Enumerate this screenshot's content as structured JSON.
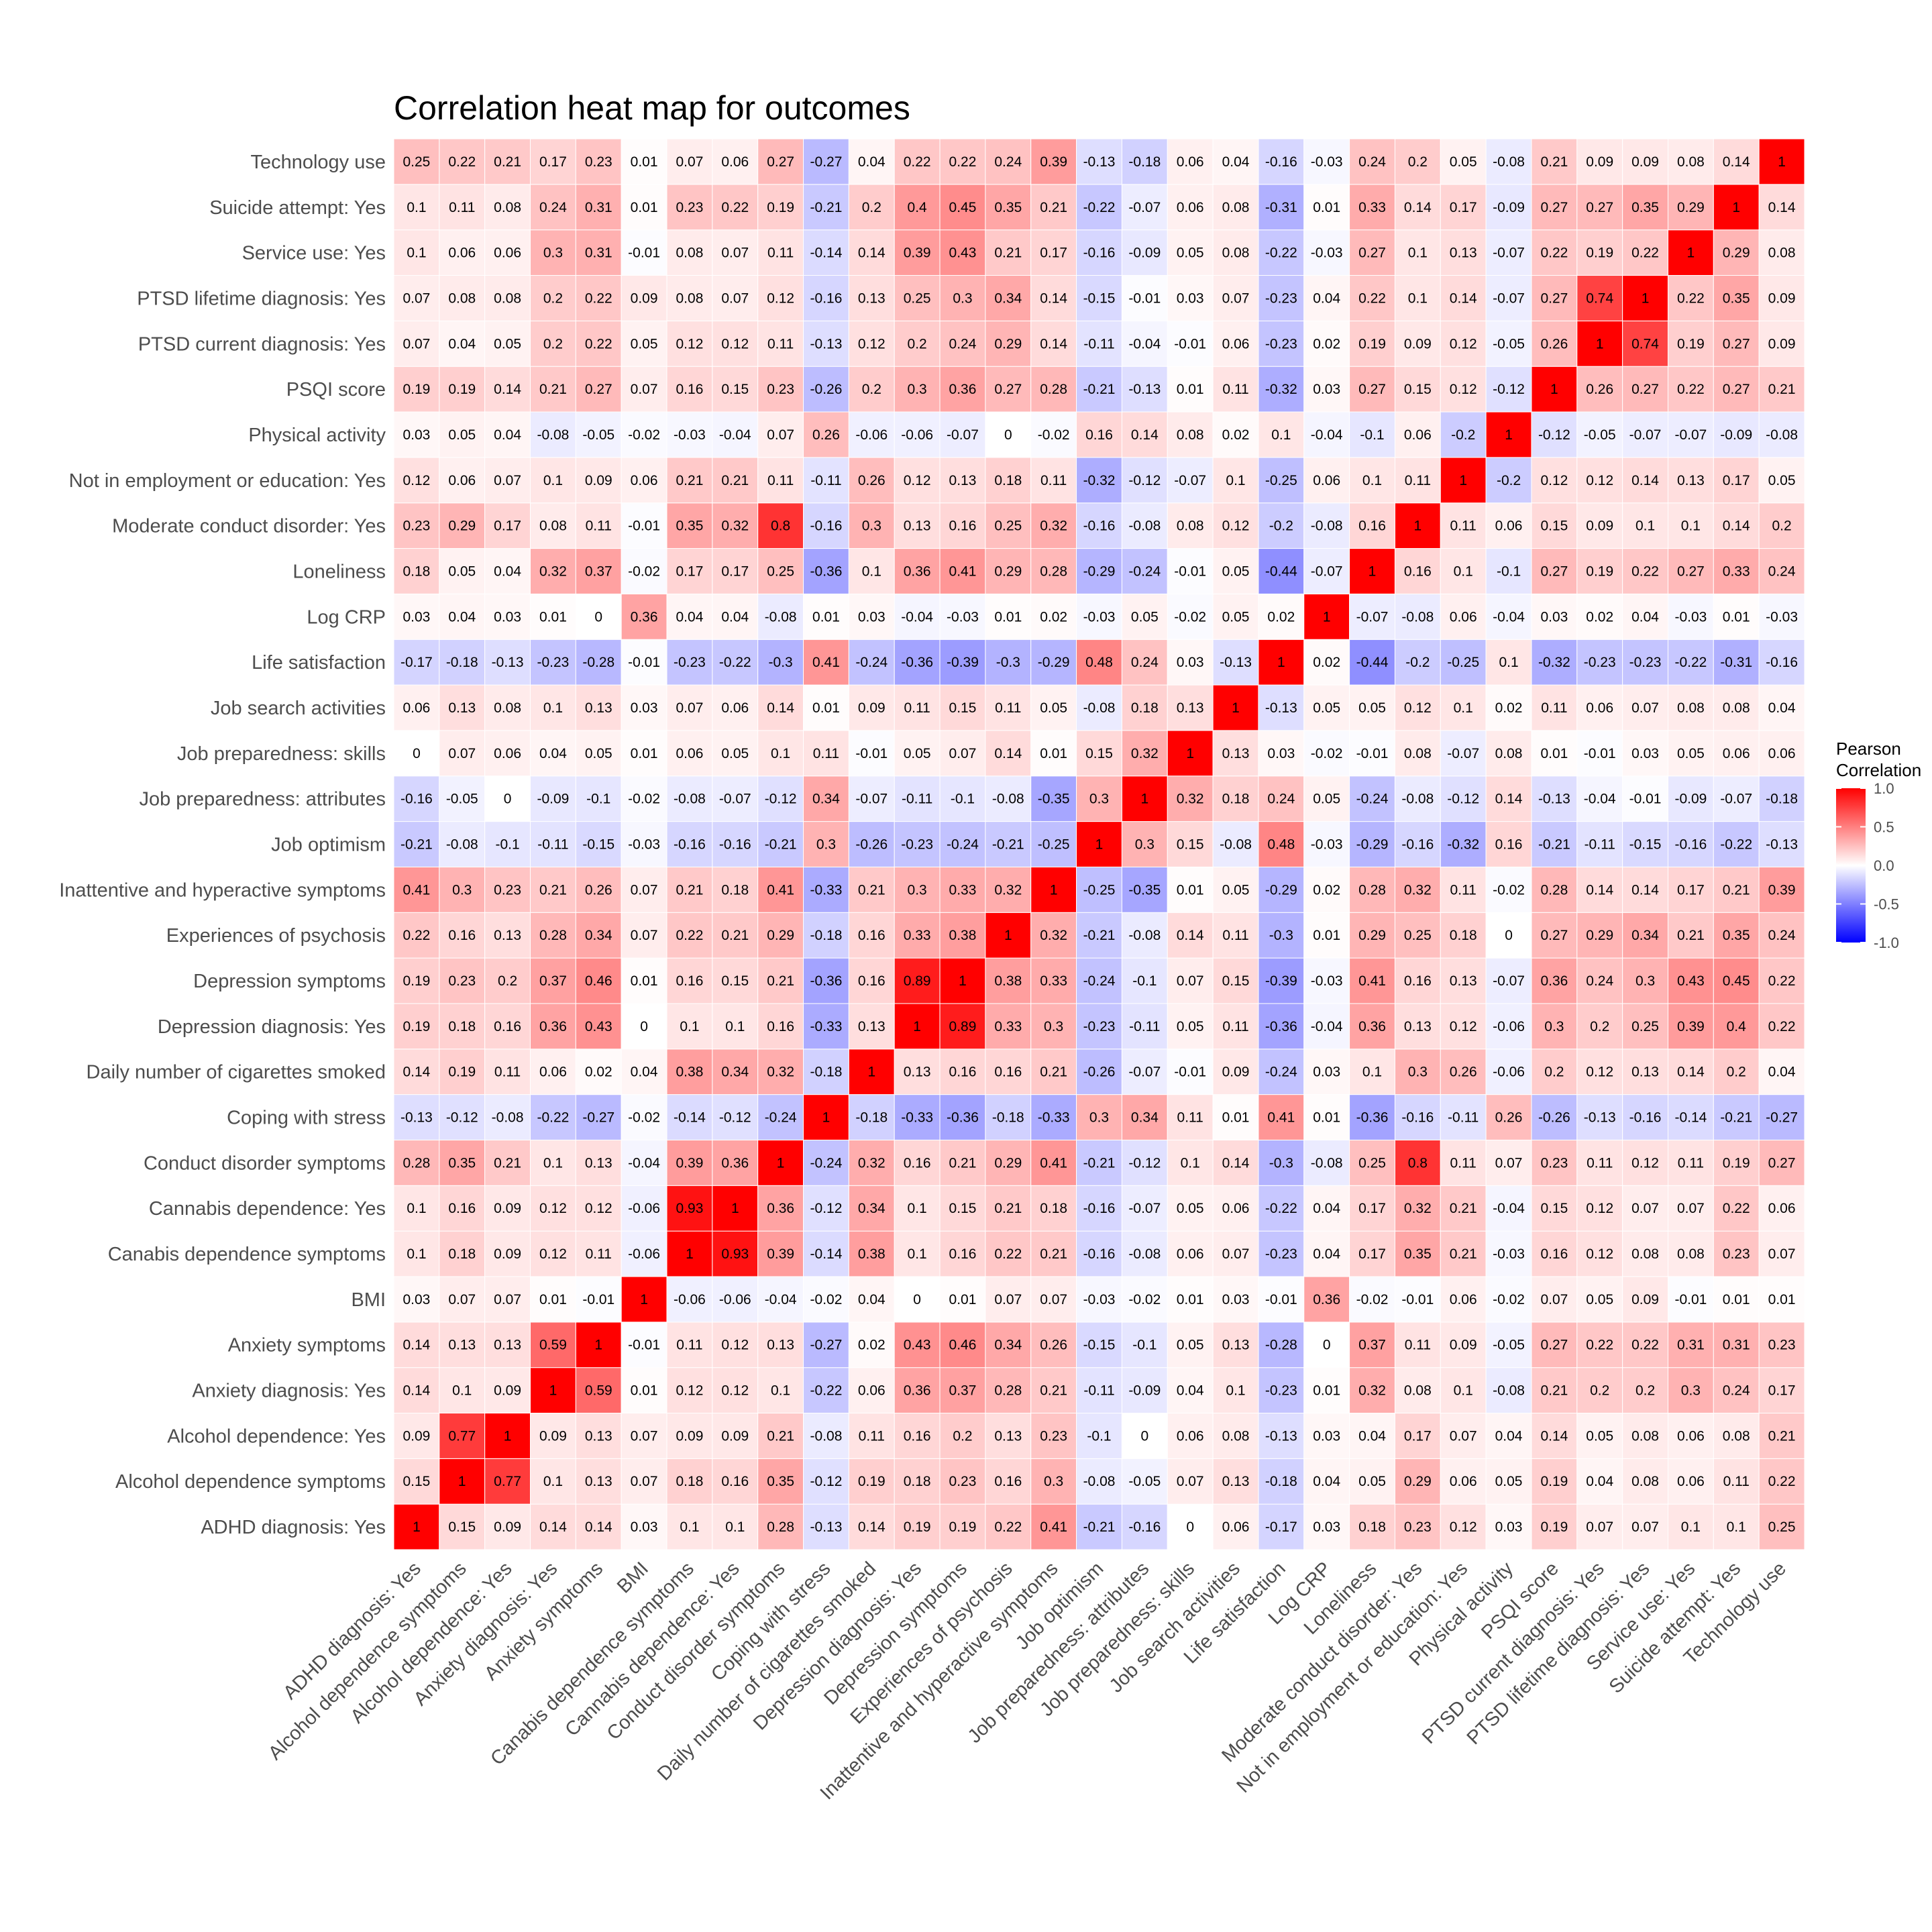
{
  "chart_data": {
    "type": "heatmap",
    "title": "Correlation heat map for outcomes",
    "variables": [
      "ADHD diagnosis: Yes",
      "Alcohol dependence symptoms",
      "Alcohol dependence: Yes",
      "Anxiety diagnosis: Yes",
      "Anxiety symptoms",
      "BMI",
      "Canabis dependence symptoms",
      "Cannabis dependence: Yes",
      "Conduct disorder symptoms",
      "Coping with stress",
      "Daily number of cigarettes smoked",
      "Depression diagnosis: Yes",
      "Depression symptoms",
      "Experiences of psychosis",
      "Inattentive and hyperactive symptoms",
      "Job optimism",
      "Job preparedness: attributes",
      "Job preparedness: skills",
      "Job search activities",
      "Life satisfaction",
      "Log CRP",
      "Loneliness",
      "Moderate conduct disorder: Yes",
      "Not in employment or education: Yes",
      "Physical activity",
      "PSQI score",
      "PTSD current diagnosis: Yes",
      "PTSD lifetime diagnosis: Yes",
      "Service use: Yes",
      "Suicide attempt: Yes",
      "Technology use"
    ],
    "matrix": [
      [
        1,
        0.15,
        0.09,
        0.14,
        0.14,
        0.03,
        0.1,
        0.1,
        0.28,
        -0.13,
        0.14,
        0.19,
        0.19,
        0.22,
        0.41,
        -0.21,
        -0.16,
        0,
        0.06,
        -0.17,
        0.03,
        0.18,
        0.23,
        0.12,
        0.03,
        0.19,
        0.07,
        0.07,
        0.1,
        0.1,
        0.25
      ],
      [
        0.15,
        1,
        0.77,
        0.1,
        0.13,
        0.07,
        0.18,
        0.16,
        0.35,
        -0.12,
        0.19,
        0.18,
        0.23,
        0.16,
        0.3,
        -0.08,
        -0.05,
        0.07,
        0.13,
        -0.18,
        0.04,
        0.05,
        0.29,
        0.06,
        0.05,
        0.19,
        0.04,
        0.08,
        0.06,
        0.11,
        0.22
      ],
      [
        0.09,
        0.77,
        1,
        0.09,
        0.13,
        0.07,
        0.09,
        0.09,
        0.21,
        -0.08,
        0.11,
        0.16,
        0.2,
        0.13,
        0.23,
        -0.1,
        0,
        0.06,
        0.08,
        -0.13,
        0.03,
        0.04,
        0.17,
        0.07,
        0.04,
        0.14,
        0.05,
        0.08,
        0.06,
        0.08,
        0.21
      ],
      [
        0.14,
        0.1,
        0.09,
        1,
        0.59,
        0.01,
        0.12,
        0.12,
        0.1,
        -0.22,
        0.06,
        0.36,
        0.37,
        0.28,
        0.21,
        -0.11,
        -0.09,
        0.04,
        0.1,
        -0.23,
        0.01,
        0.32,
        0.08,
        0.1,
        -0.08,
        0.21,
        0.2,
        0.2,
        0.3,
        0.24,
        0.17
      ],
      [
        0.14,
        0.13,
        0.13,
        0.59,
        1,
        -0.01,
        0.11,
        0.12,
        0.13,
        -0.27,
        0.02,
        0.43,
        0.46,
        0.34,
        0.26,
        -0.15,
        -0.1,
        0.05,
        0.13,
        -0.28,
        0,
        0.37,
        0.11,
        0.09,
        -0.05,
        0.27,
        0.22,
        0.22,
        0.31,
        0.31,
        0.23
      ],
      [
        0.03,
        0.07,
        0.07,
        0.01,
        -0.01,
        1,
        -0.06,
        -0.06,
        -0.04,
        -0.02,
        0.04,
        0,
        0.01,
        0.07,
        0.07,
        -0.03,
        -0.02,
        0.01,
        0.03,
        -0.01,
        0.36,
        -0.02,
        -0.01,
        0.06,
        -0.02,
        0.07,
        0.05,
        0.09,
        -0.01,
        0.01,
        0.01
      ],
      [
        0.1,
        0.18,
        0.09,
        0.12,
        0.11,
        -0.06,
        1,
        0.93,
        0.39,
        -0.14,
        0.38,
        0.1,
        0.16,
        0.22,
        0.21,
        -0.16,
        -0.08,
        0.06,
        0.07,
        -0.23,
        0.04,
        0.17,
        0.35,
        0.21,
        -0.03,
        0.16,
        0.12,
        0.08,
        0.08,
        0.23,
        0.07
      ],
      [
        0.1,
        0.16,
        0.09,
        0.12,
        0.12,
        -0.06,
        0.93,
        1,
        0.36,
        -0.12,
        0.34,
        0.1,
        0.15,
        0.21,
        0.18,
        -0.16,
        -0.07,
        0.05,
        0.06,
        -0.22,
        0.04,
        0.17,
        0.32,
        0.21,
        -0.04,
        0.15,
        0.12,
        0.07,
        0.07,
        0.22,
        0.06
      ],
      [
        0.28,
        0.35,
        0.21,
        0.1,
        0.13,
        -0.04,
        0.39,
        0.36,
        1,
        -0.24,
        0.32,
        0.16,
        0.21,
        0.29,
        0.41,
        -0.21,
        -0.12,
        0.1,
        0.14,
        -0.3,
        -0.08,
        0.25,
        0.8,
        0.11,
        0.07,
        0.23,
        0.11,
        0.12,
        0.11,
        0.19,
        0.27
      ],
      [
        -0.13,
        -0.12,
        -0.08,
        -0.22,
        -0.27,
        -0.02,
        -0.14,
        -0.12,
        -0.24,
        1,
        -0.18,
        -0.33,
        -0.36,
        -0.18,
        -0.33,
        0.3,
        0.34,
        0.11,
        0.01,
        0.41,
        0.01,
        -0.36,
        -0.16,
        -0.11,
        0.26,
        -0.26,
        -0.13,
        -0.16,
        -0.14,
        -0.21,
        -0.27
      ],
      [
        0.14,
        0.19,
        0.11,
        0.06,
        0.02,
        0.04,
        0.38,
        0.34,
        0.32,
        -0.18,
        1,
        0.13,
        0.16,
        0.16,
        0.21,
        -0.26,
        -0.07,
        -0.01,
        0.09,
        -0.24,
        0.03,
        0.1,
        0.3,
        0.26,
        -0.06,
        0.2,
        0.12,
        0.13,
        0.14,
        0.2,
        0.04
      ],
      [
        0.19,
        0.18,
        0.16,
        0.36,
        0.43,
        0,
        0.1,
        0.1,
        0.16,
        -0.33,
        0.13,
        1,
        0.89,
        0.33,
        0.3,
        -0.23,
        -0.11,
        0.05,
        0.11,
        -0.36,
        -0.04,
        0.36,
        0.13,
        0.12,
        -0.06,
        0.3,
        0.2,
        0.25,
        0.39,
        0.4,
        0.22
      ],
      [
        0.19,
        0.23,
        0.2,
        0.37,
        0.46,
        0.01,
        0.16,
        0.15,
        0.21,
        -0.36,
        0.16,
        0.89,
        1,
        0.38,
        0.33,
        -0.24,
        -0.1,
        0.07,
        0.15,
        -0.39,
        -0.03,
        0.41,
        0.16,
        0.13,
        -0.07,
        0.36,
        0.24,
        0.3,
        0.43,
        0.45,
        0.22
      ],
      [
        0.22,
        0.16,
        0.13,
        0.28,
        0.34,
        0.07,
        0.22,
        0.21,
        0.29,
        -0.18,
        0.16,
        0.33,
        0.38,
        1,
        0.32,
        -0.21,
        -0.08,
        0.14,
        0.11,
        -0.3,
        0.01,
        0.29,
        0.25,
        0.18,
        0,
        0.27,
        0.29,
        0.34,
        0.21,
        0.35,
        0.24
      ],
      [
        0.41,
        0.3,
        0.23,
        0.21,
        0.26,
        0.07,
        0.21,
        0.18,
        0.41,
        -0.33,
        0.21,
        0.3,
        0.33,
        0.32,
        1,
        -0.25,
        -0.35,
        0.01,
        0.05,
        -0.29,
        0.02,
        0.28,
        0.32,
        0.11,
        -0.02,
        0.28,
        0.14,
        0.14,
        0.17,
        0.21,
        0.39
      ],
      [
        -0.21,
        -0.08,
        -0.1,
        -0.11,
        -0.15,
        -0.03,
        -0.16,
        -0.16,
        -0.21,
        0.3,
        -0.26,
        -0.23,
        -0.24,
        -0.21,
        -0.25,
        1,
        0.3,
        0.15,
        -0.08,
        0.48,
        -0.03,
        -0.29,
        -0.16,
        -0.32,
        0.16,
        -0.21,
        -0.11,
        -0.15,
        -0.16,
        -0.22,
        -0.13
      ],
      [
        -0.16,
        -0.05,
        0,
        -0.09,
        -0.1,
        -0.02,
        -0.08,
        -0.07,
        -0.12,
        0.34,
        -0.07,
        -0.11,
        -0.1,
        -0.08,
        -0.35,
        0.3,
        1,
        0.32,
        0.18,
        0.24,
        0.05,
        -0.24,
        -0.08,
        -0.12,
        0.14,
        -0.13,
        -0.04,
        -0.01,
        -0.09,
        -0.07,
        -0.18
      ],
      [
        0,
        0.07,
        0.06,
        0.04,
        0.05,
        0.01,
        0.06,
        0.05,
        0.1,
        0.11,
        -0.01,
        0.05,
        0.07,
        0.14,
        0.01,
        0.15,
        0.32,
        1,
        0.13,
        0.03,
        -0.02,
        -0.01,
        0.08,
        -0.07,
        0.08,
        0.01,
        -0.01,
        0.03,
        0.05,
        0.06,
        0.06
      ],
      [
        0.06,
        0.13,
        0.08,
        0.1,
        0.13,
        0.03,
        0.07,
        0.06,
        0.14,
        0.01,
        0.09,
        0.11,
        0.15,
        0.11,
        0.05,
        -0.08,
        0.18,
        0.13,
        1,
        -0.13,
        0.05,
        0.05,
        0.12,
        0.1,
        0.02,
        0.11,
        0.06,
        0.07,
        0.08,
        0.08,
        0.04
      ],
      [
        -0.17,
        -0.18,
        -0.13,
        -0.23,
        -0.28,
        -0.01,
        -0.23,
        -0.22,
        -0.3,
        0.41,
        -0.24,
        -0.36,
        -0.39,
        -0.3,
        -0.29,
        0.48,
        0.24,
        0.03,
        -0.13,
        1,
        0.02,
        -0.44,
        -0.2,
        -0.25,
        0.1,
        -0.32,
        -0.23,
        -0.23,
        -0.22,
        -0.31,
        -0.16
      ],
      [
        0.03,
        0.04,
        0.03,
        0.01,
        0,
        0.36,
        0.04,
        0.04,
        -0.08,
        0.01,
        0.03,
        -0.04,
        -0.03,
        0.01,
        0.02,
        -0.03,
        0.05,
        -0.02,
        0.05,
        0.02,
        1,
        -0.07,
        -0.08,
        0.06,
        -0.04,
        0.03,
        0.02,
        0.04,
        -0.03,
        0.01,
        -0.03
      ],
      [
        0.18,
        0.05,
        0.04,
        0.32,
        0.37,
        -0.02,
        0.17,
        0.17,
        0.25,
        -0.36,
        0.1,
        0.36,
        0.41,
        0.29,
        0.28,
        -0.29,
        -0.24,
        -0.01,
        0.05,
        -0.44,
        -0.07,
        1,
        0.16,
        0.1,
        -0.1,
        0.27,
        0.19,
        0.22,
        0.27,
        0.33,
        0.24
      ],
      [
        0.23,
        0.29,
        0.17,
        0.08,
        0.11,
        -0.01,
        0.35,
        0.32,
        0.8,
        -0.16,
        0.3,
        0.13,
        0.16,
        0.25,
        0.32,
        -0.16,
        -0.08,
        0.08,
        0.12,
        -0.2,
        -0.08,
        0.16,
        1,
        0.11,
        0.06,
        0.15,
        0.09,
        0.1,
        0.1,
        0.14,
        0.2
      ],
      [
        0.12,
        0.06,
        0.07,
        0.1,
        0.09,
        0.06,
        0.21,
        0.21,
        0.11,
        -0.11,
        0.26,
        0.12,
        0.13,
        0.18,
        0.11,
        -0.32,
        -0.12,
        -0.07,
        0.1,
        -0.25,
        0.06,
        0.1,
        0.11,
        1,
        -0.2,
        0.12,
        0.12,
        0.14,
        0.13,
        0.17,
        0.05
      ],
      [
        0.03,
        0.05,
        0.04,
        -0.08,
        -0.05,
        -0.02,
        -0.03,
        -0.04,
        0.07,
        0.26,
        -0.06,
        -0.06,
        -0.07,
        0,
        -0.02,
        0.16,
        0.14,
        0.08,
        0.02,
        0.1,
        -0.04,
        -0.1,
        0.06,
        -0.2,
        1,
        -0.12,
        -0.05,
        -0.07,
        -0.07,
        -0.09,
        -0.08
      ],
      [
        0.19,
        0.19,
        0.14,
        0.21,
        0.27,
        0.07,
        0.16,
        0.15,
        0.23,
        -0.26,
        0.2,
        0.3,
        0.36,
        0.27,
        0.28,
        -0.21,
        -0.13,
        0.01,
        0.11,
        -0.32,
        0.03,
        0.27,
        0.15,
        0.12,
        -0.12,
        1,
        0.26,
        0.27,
        0.22,
        0.27,
        0.21
      ],
      [
        0.07,
        0.04,
        0.05,
        0.2,
        0.22,
        0.05,
        0.12,
        0.12,
        0.11,
        -0.13,
        0.12,
        0.2,
        0.24,
        0.29,
        0.14,
        -0.11,
        -0.04,
        -0.01,
        0.06,
        -0.23,
        0.02,
        0.19,
        0.09,
        0.12,
        -0.05,
        0.26,
        1,
        0.74,
        0.19,
        0.27,
        0.09
      ],
      [
        0.07,
        0.08,
        0.08,
        0.2,
        0.22,
        0.09,
        0.08,
        0.07,
        0.12,
        -0.16,
        0.13,
        0.25,
        0.3,
        0.34,
        0.14,
        -0.15,
        -0.01,
        0.03,
        0.07,
        -0.23,
        0.04,
        0.22,
        0.1,
        0.14,
        -0.07,
        0.27,
        0.74,
        1,
        0.22,
        0.35,
        0.09
      ],
      [
        0.1,
        0.06,
        0.06,
        0.3,
        0.31,
        -0.01,
        0.08,
        0.07,
        0.11,
        -0.14,
        0.14,
        0.39,
        0.43,
        0.21,
        0.17,
        -0.16,
        -0.09,
        0.05,
        0.08,
        -0.22,
        -0.03,
        0.27,
        0.1,
        0.13,
        -0.07,
        0.22,
        0.19,
        0.22,
        1,
        0.29,
        0.08
      ],
      [
        0.1,
        0.11,
        0.08,
        0.24,
        0.31,
        0.01,
        0.23,
        0.22,
        0.19,
        -0.21,
        0.2,
        0.4,
        0.45,
        0.35,
        0.21,
        -0.22,
        -0.07,
        0.06,
        0.08,
        -0.31,
        0.01,
        0.33,
        0.14,
        0.17,
        -0.09,
        0.27,
        0.27,
        0.35,
        0.29,
        1,
        0.14
      ],
      [
        0.25,
        0.22,
        0.21,
        0.17,
        0.23,
        0.01,
        0.07,
        0.06,
        0.27,
        -0.27,
        0.04,
        0.22,
        0.22,
        0.24,
        0.39,
        -0.13,
        -0.18,
        0.06,
        0.04,
        -0.16,
        -0.03,
        0.24,
        0.2,
        0.05,
        -0.08,
        0.21,
        0.09,
        0.09,
        0.08,
        0.14,
        1
      ]
    ],
    "color_scale": {
      "low": "#0000ff",
      "mid": "#ffffff",
      "high": "#ff0000",
      "limits": [
        -1,
        1
      ]
    },
    "legend": {
      "title_line1": "Pearson",
      "title_line2": "Correlation",
      "ticks": [
        "1.0",
        "0.5",
        "0.0",
        "-0.5",
        "-1.0"
      ],
      "tick_values": [
        1,
        0.5,
        0,
        -0.5,
        -1
      ],
      "placement": "right"
    },
    "grid": false
  }
}
